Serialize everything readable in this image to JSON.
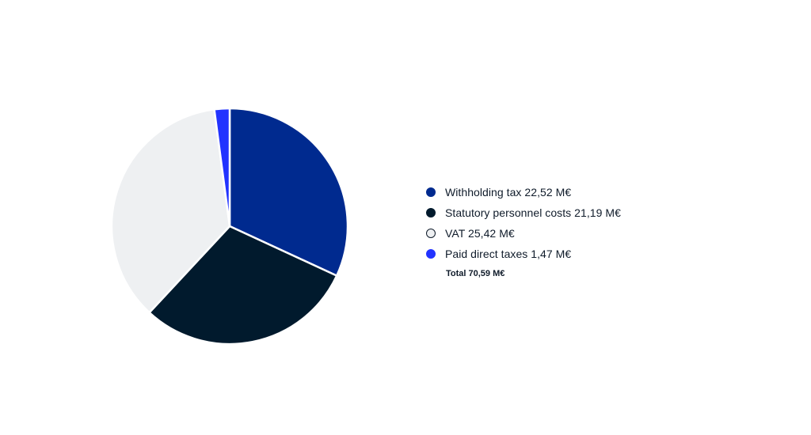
{
  "chart_data": {
    "type": "pie",
    "title": "",
    "slices": [
      {
        "label": "Withholding tax 22,52 M€",
        "value": 22.52,
        "color": "#002a8f"
      },
      {
        "label": "Statutory personnel costs 21,19 M€",
        "value": 21.19,
        "color": "#011a2d"
      },
      {
        "label": "VAT 25,42 M€",
        "value": 25.42,
        "color": "#eef0f2"
      },
      {
        "label": "Paid direct taxes 1,47 M€",
        "value": 1.47,
        "color": "#2233ff"
      }
    ],
    "total_label": "Total 70,59 M€",
    "total_value": 70.59,
    "legend_position": "right",
    "start_angle": "top",
    "direction": "clockwise"
  }
}
